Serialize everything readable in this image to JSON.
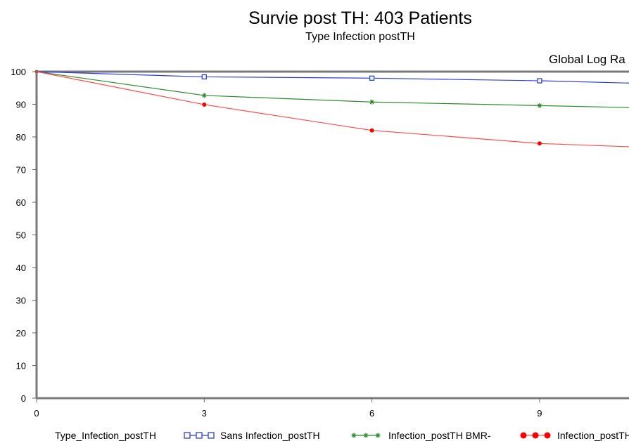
{
  "chart_data": {
    "type": "line",
    "title": "Survie post TH: 403 Patients",
    "subtitle": "Type Infection postTH",
    "annotation": "Global Log Ra",
    "x_ticks": [
      0,
      3,
      6,
      9
    ],
    "y_ticks": [
      0,
      10,
      20,
      30,
      40,
      50,
      60,
      70,
      80,
      90,
      100
    ],
    "xlim": [
      0,
      10.6
    ],
    "ylim": [
      0,
      100
    ],
    "grid": false,
    "legend_position": "bottom",
    "legend_title": "Type_Infection_postTH",
    "series": [
      {
        "name": "Sans Infection_postTH",
        "color": "#2b3fe0",
        "marker": "open-square",
        "x": [
          0,
          3,
          6,
          9,
          10.6
        ],
        "values": [
          100,
          98.4,
          98.0,
          97.2,
          96.5
        ]
      },
      {
        "name": "Infection_postTH BMR-",
        "color": "#2e8b2e",
        "marker": "asterisk",
        "x": [
          0,
          3,
          6,
          9,
          10.6
        ],
        "values": [
          100,
          92.7,
          90.7,
          89.6,
          89.0
        ]
      },
      {
        "name": "Infection_postTH",
        "color": "#ff4a4a",
        "marker_color": "#ff0000",
        "marker": "filled-circle",
        "x": [
          0,
          3,
          6,
          9,
          10.6
        ],
        "values": [
          100,
          89.9,
          82.0,
          78.0,
          77.0
        ]
      }
    ]
  }
}
